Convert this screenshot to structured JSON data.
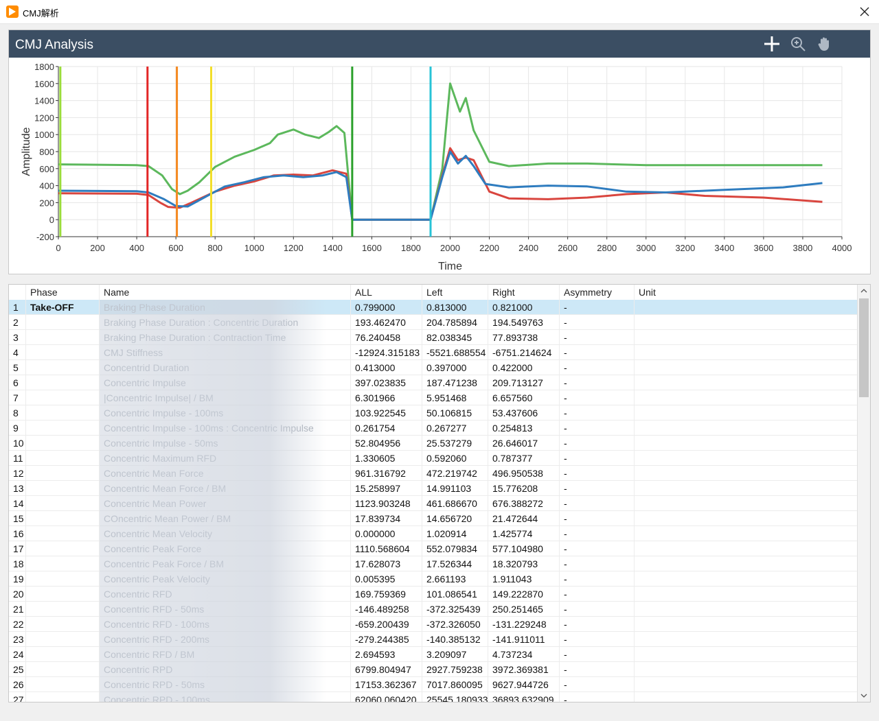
{
  "window": {
    "title": "CMJ解析"
  },
  "panel": {
    "title": "CMJ Analysis",
    "tools": [
      "crosshair-icon",
      "zoom-icon",
      "pan-hand-icon"
    ]
  },
  "chart_data": {
    "type": "line",
    "xlabel": "Time",
    "ylabel": "Amplitude",
    "xlim": [
      0,
      4000
    ],
    "ylim": [
      -200,
      1800
    ],
    "x_ticks": [
      0,
      200,
      400,
      600,
      800,
      1000,
      1200,
      1400,
      1600,
      1800,
      2000,
      2200,
      2400,
      2600,
      2800,
      3000,
      3200,
      3400,
      3600,
      3800,
      4000
    ],
    "y_ticks": [
      -200,
      0,
      200,
      400,
      600,
      800,
      1000,
      1200,
      1400,
      1600,
      1800
    ],
    "grid": true,
    "series": [
      {
        "color": "#5cb85c",
        "points": [
          [
            0,
            650
          ],
          [
            400,
            640
          ],
          [
            460,
            630
          ],
          [
            530,
            520
          ],
          [
            580,
            360
          ],
          [
            620,
            300
          ],
          [
            660,
            340
          ],
          [
            720,
            440
          ],
          [
            800,
            620
          ],
          [
            900,
            740
          ],
          [
            1000,
            820
          ],
          [
            1080,
            900
          ],
          [
            1120,
            1000
          ],
          [
            1200,
            1060
          ],
          [
            1260,
            1000
          ],
          [
            1330,
            960
          ],
          [
            1380,
            1030
          ],
          [
            1420,
            1100
          ],
          [
            1460,
            1020
          ],
          [
            1500,
            0
          ],
          [
            1900,
            0
          ],
          [
            1960,
            600
          ],
          [
            2000,
            1600
          ],
          [
            2050,
            1270
          ],
          [
            2080,
            1430
          ],
          [
            2120,
            1050
          ],
          [
            2200,
            680
          ],
          [
            2300,
            630
          ],
          [
            2500,
            660
          ],
          [
            2700,
            660
          ],
          [
            3000,
            640
          ],
          [
            3500,
            640
          ],
          [
            3900,
            640
          ]
        ]
      },
      {
        "color": "#d9453e",
        "points": [
          [
            0,
            310
          ],
          [
            400,
            305
          ],
          [
            460,
            290
          ],
          [
            520,
            200
          ],
          [
            560,
            150
          ],
          [
            620,
            140
          ],
          [
            680,
            200
          ],
          [
            800,
            330
          ],
          [
            900,
            400
          ],
          [
            1000,
            450
          ],
          [
            1100,
            520
          ],
          [
            1200,
            530
          ],
          [
            1300,
            520
          ],
          [
            1400,
            580
          ],
          [
            1470,
            540
          ],
          [
            1500,
            0
          ],
          [
            1900,
            0
          ],
          [
            1960,
            520
          ],
          [
            2000,
            840
          ],
          [
            2040,
            700
          ],
          [
            2080,
            730
          ],
          [
            2120,
            700
          ],
          [
            2200,
            330
          ],
          [
            2300,
            250
          ],
          [
            2500,
            240
          ],
          [
            2700,
            260
          ],
          [
            2900,
            300
          ],
          [
            3100,
            320
          ],
          [
            3300,
            280
          ],
          [
            3600,
            260
          ],
          [
            3900,
            210
          ]
        ]
      },
      {
        "color": "#2e7cbf",
        "points": [
          [
            0,
            340
          ],
          [
            400,
            335
          ],
          [
            460,
            320
          ],
          [
            540,
            240
          ],
          [
            600,
            160
          ],
          [
            660,
            155
          ],
          [
            760,
            280
          ],
          [
            850,
            390
          ],
          [
            950,
            440
          ],
          [
            1050,
            500
          ],
          [
            1150,
            520
          ],
          [
            1250,
            500
          ],
          [
            1350,
            520
          ],
          [
            1420,
            560
          ],
          [
            1470,
            500
          ],
          [
            1500,
            0
          ],
          [
            1900,
            0
          ],
          [
            1960,
            500
          ],
          [
            2000,
            800
          ],
          [
            2040,
            660
          ],
          [
            2080,
            750
          ],
          [
            2120,
            630
          ],
          [
            2180,
            420
          ],
          [
            2300,
            380
          ],
          [
            2500,
            400
          ],
          [
            2700,
            390
          ],
          [
            2900,
            330
          ],
          [
            3100,
            320
          ],
          [
            3400,
            350
          ],
          [
            3700,
            380
          ],
          [
            3900,
            430
          ]
        ]
      }
    ],
    "markers": [
      {
        "x": 10,
        "color": "#9adc3a"
      },
      {
        "x": 455,
        "color": "#e32626"
      },
      {
        "x": 605,
        "color": "#f58a21"
      },
      {
        "x": 780,
        "color": "#f2de2a"
      },
      {
        "x": 1500,
        "color": "#2aa02a"
      },
      {
        "x": 1900,
        "color": "#27c3d6"
      }
    ]
  },
  "table": {
    "headers": [
      "Phase",
      "Name",
      "ALL",
      "Left",
      "Right",
      "Asymmetry",
      "Unit"
    ],
    "rows": [
      {
        "idx": "1",
        "phase": "Take-OFF",
        "name": "Braking Phase Duration",
        "all": "0.799000",
        "left": "0.813000",
        "right": "0.821000",
        "asym": "-"
      },
      {
        "idx": "2",
        "phase": "",
        "name": "Braking Phase Duration : Concentric Duration",
        "all": "193.462470",
        "left": "204.785894",
        "right": "194.549763",
        "asym": "-"
      },
      {
        "idx": "3",
        "phase": "",
        "name": "Braking Phase Duration : Contraction Time",
        "all": "76.240458",
        "left": "82.038345",
        "right": "77.893738",
        "asym": "-"
      },
      {
        "idx": "4",
        "phase": "",
        "name": "CMJ Stiffness",
        "all": "-12924.315183",
        "left": "-5521.688554",
        "right": "-6751.214624",
        "asym": "-"
      },
      {
        "idx": "5",
        "phase": "",
        "name": "Concentrid Duration",
        "all": "0.413000",
        "left": "0.397000",
        "right": "0.422000",
        "asym": "-"
      },
      {
        "idx": "6",
        "phase": "",
        "name": "Concentric Impulse",
        "all": "397.023835",
        "left": "187.471238",
        "right": "209.713127",
        "asym": "-"
      },
      {
        "idx": "7",
        "phase": "",
        "name": "|Concentric Impulse| / BM",
        "all": "6.301966",
        "left": "5.951468",
        "right": "6.657560",
        "asym": "-"
      },
      {
        "idx": "8",
        "phase": "",
        "name": "Concentric Impulse - 100ms",
        "all": "103.922545",
        "left": "50.106815",
        "right": "53.437606",
        "asym": "-"
      },
      {
        "idx": "9",
        "phase": "",
        "name": "Concentric Impulse - 100ms : Concentric Impulse",
        "all": "0.261754",
        "left": "0.267277",
        "right": "0.254813",
        "asym": "-"
      },
      {
        "idx": "10",
        "phase": "",
        "name": "Concentric Impulse - 50ms",
        "all": "52.804956",
        "left": "25.537279",
        "right": "26.646017",
        "asym": "-"
      },
      {
        "idx": "11",
        "phase": "",
        "name": "Concentric Maximum RFD",
        "all": "1.330605",
        "left": "0.592060",
        "right": "0.787377",
        "asym": "-"
      },
      {
        "idx": "12",
        "phase": "",
        "name": "Concentric Mean Force",
        "all": "961.316792",
        "left": "472.219742",
        "right": "496.950538",
        "asym": "-"
      },
      {
        "idx": "13",
        "phase": "",
        "name": "Concentric Mean Force / BM",
        "all": "15.258997",
        "left": "14.991103",
        "right": "15.776208",
        "asym": "-"
      },
      {
        "idx": "14",
        "phase": "",
        "name": "Concentric Mean Power",
        "all": "1123.903248",
        "left": "461.686670",
        "right": "676.388272",
        "asym": "-"
      },
      {
        "idx": "15",
        "phase": "",
        "name": "COncentric Mean Power / BM",
        "all": "17.839734",
        "left": "14.656720",
        "right": "21.472644",
        "asym": "-"
      },
      {
        "idx": "16",
        "phase": "",
        "name": "Concentric Mean Velocity",
        "all": "0.000000",
        "left": "1.020914",
        "right": "1.425774",
        "asym": "-"
      },
      {
        "idx": "17",
        "phase": "",
        "name": "Concentric Peak Force",
        "all": "1110.568604",
        "left": "552.079834",
        "right": "577.104980",
        "asym": "-"
      },
      {
        "idx": "18",
        "phase": "",
        "name": "Concentric Peak Force / BM",
        "all": "17.628073",
        "left": "17.526344",
        "right": "18.320793",
        "asym": "-"
      },
      {
        "idx": "19",
        "phase": "",
        "name": "Concentric Peak Velocity",
        "all": "0.005395",
        "left": "2.661193",
        "right": "1.911043",
        "asym": "-"
      },
      {
        "idx": "20",
        "phase": "",
        "name": "Concentric RFD",
        "all": "169.759369",
        "left": "101.086541",
        "right": "149.222870",
        "asym": "-"
      },
      {
        "idx": "21",
        "phase": "",
        "name": "Concentric RFD - 50ms",
        "all": "-146.489258",
        "left": "-372.325439",
        "right": "250.251465",
        "asym": "-"
      },
      {
        "idx": "22",
        "phase": "",
        "name": "Concentric RFD - 100ms",
        "all": "-659.200439",
        "left": "-372.326050",
        "right": "-131.229248",
        "asym": "-"
      },
      {
        "idx": "23",
        "phase": "",
        "name": "Concentric RFD - 200ms",
        "all": "-279.244385",
        "left": "-140.385132",
        "right": "-141.911011",
        "asym": "-"
      },
      {
        "idx": "24",
        "phase": "",
        "name": "Concentric RFD / BM",
        "all": "2.694593",
        "left": "3.209097",
        "right": "4.737234",
        "asym": "-"
      },
      {
        "idx": "25",
        "phase": "",
        "name": "Concentric RPD",
        "all": "6799.804947",
        "left": "2927.759238",
        "right": "3972.369381",
        "asym": "-"
      },
      {
        "idx": "26",
        "phase": "",
        "name": "Concentric RPD - 50ms",
        "all": "17153.362367",
        "left": "7017.860095",
        "right": "9627.944726",
        "asym": "-"
      },
      {
        "idx": "27",
        "phase": "",
        "name": "Concentric RPD - 100ms",
        "all": "62060.060420",
        "left": "25545.180933",
        "right": "36893.632909",
        "asym": "-"
      }
    ]
  }
}
